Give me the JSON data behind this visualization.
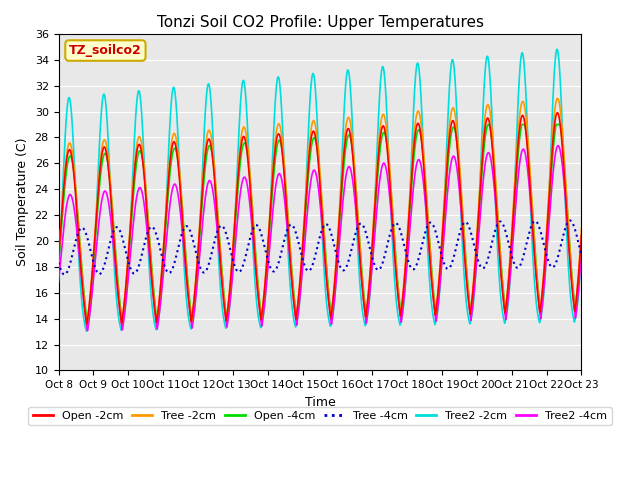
{
  "title": "Tonzi Soil CO2 Profile: Upper Temperatures",
  "xlabel": "Time",
  "ylabel": "Soil Temperature (C)",
  "ylim": [
    10,
    36
  ],
  "yticks": [
    10,
    12,
    14,
    16,
    18,
    20,
    22,
    24,
    26,
    28,
    30,
    32,
    34,
    36
  ],
  "xtick_labels": [
    "Oct 8",
    "Oct 9",
    "Oct 10",
    "Oct 11",
    "Oct 12",
    "Oct 13",
    "Oct 14",
    "Oct 15",
    "Oct 16",
    "Oct 17",
    "Oct 18",
    "Oct 19",
    "Oct 20",
    "Oct 21",
    "Oct 22",
    "Oct 23"
  ],
  "annotation_text": "TZ_soilco2",
  "annotation_color": "#cc0000",
  "annotation_bg": "#ffffcc",
  "annotation_border": "#ccaa00",
  "bg_color": "#e8e8e8",
  "series": {
    "Open -2cm": {
      "color": "#ff0000",
      "lw": 1.2
    },
    "Tree -2cm": {
      "color": "#ff9900",
      "lw": 1.2
    },
    "Open -4cm": {
      "color": "#00dd00",
      "lw": 1.2
    },
    "Tree -4cm": {
      "color": "#0000cc",
      "lw": 1.5
    },
    "Tree2 -2cm": {
      "color": "#00dddd",
      "lw": 1.2
    },
    "Tree2 -4cm": {
      "color": "#ff00ff",
      "lw": 1.2
    }
  },
  "n_days": 15
}
